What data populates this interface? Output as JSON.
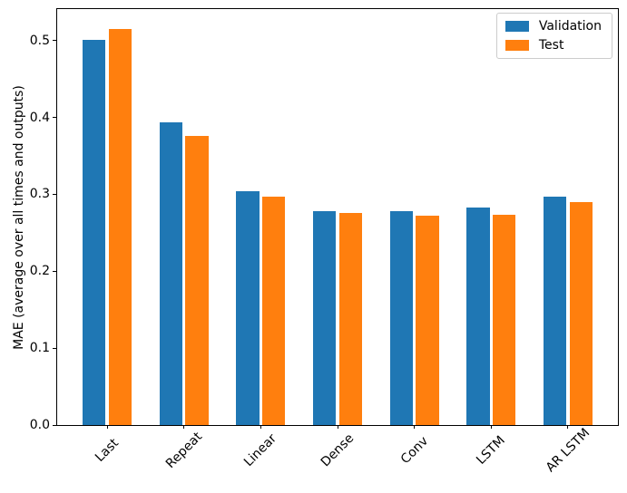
{
  "chart_data": {
    "type": "bar",
    "title": "",
    "ylabel": "MAE (average over all times and outputs)",
    "xlabel": "",
    "categories": [
      "Last",
      "Repeat",
      "Linear",
      "Dense",
      "Conv",
      "LSTM",
      "AR LSTM"
    ],
    "series": [
      {
        "name": "Validation",
        "color": "#1f77b4",
        "values": [
          0.501,
          0.394,
          0.304,
          0.278,
          0.278,
          0.283,
          0.297
        ]
      },
      {
        "name": "Test",
        "color": "#ff7f0e",
        "values": [
          0.515,
          0.376,
          0.297,
          0.276,
          0.272,
          0.273,
          0.29
        ]
      }
    ],
    "yticks": [
      0.0,
      0.1,
      0.2,
      0.3,
      0.4,
      0.5
    ],
    "ytick_labels": [
      "0.0",
      "0.1",
      "0.2",
      "0.3",
      "0.4",
      "0.5"
    ],
    "ylim": [
      0,
      0.541
    ],
    "xtick_rotation": 45,
    "grid": false,
    "legend_position": "upper right",
    "background_color": "#ffffff",
    "spine_color": "#000000",
    "legend_border_color": "#cccccc"
  }
}
